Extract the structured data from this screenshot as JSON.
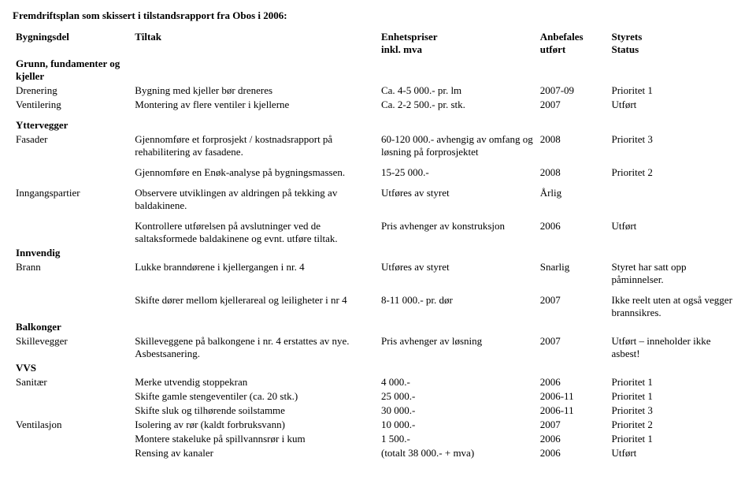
{
  "title": "Fremdriftsplan som skissert i tilstandsrapport fra Obos i 2006:",
  "headers": {
    "c1": "Bygningsdel",
    "c2": "Tiltak",
    "c3a": "Enhetspriser",
    "c3b": "inkl. mva",
    "c4a": "Anbefales",
    "c4b": "utført",
    "c5a": "Styrets",
    "c5b": "Status"
  },
  "sections": {
    "grunn": {
      "heading": "Grunn, fundamenter og kjeller",
      "rows": [
        {
          "label": "Drenering",
          "tiltak": "Bygning med kjeller bør dreneres",
          "pris": "Ca. 4-5 000.- pr. lm",
          "anbefales": "2007-09",
          "status": "Prioritet 1"
        },
        {
          "label": "Ventilering",
          "tiltak": "Montering av flere ventiler i kjellerne",
          "pris": "Ca. 2-2 500.- pr. stk.",
          "anbefales": "2007",
          "status": "Utført"
        }
      ]
    },
    "yttervegger": {
      "heading": "Yttervegger",
      "rows": [
        {
          "label": "Fasader",
          "tiltak": "Gjennomføre et forprosjekt / kostnadsrapport på rehabilitering av fasadene.",
          "pris": "60-120 000.- avhengig av omfang og løsning på forprosjektet",
          "anbefales": "2008",
          "status": "Prioritet 3"
        },
        {
          "label": "",
          "tiltak": "Gjennomføre en Enøk-analyse på bygningsmassen.",
          "pris": "15-25 000.-",
          "anbefales": "2008",
          "status": "Prioritet 2"
        },
        {
          "label": "Inngangspartier",
          "tiltak": "Observere utviklingen av aldringen på tekking av baldakinene.",
          "pris": "Utføres av styret",
          "anbefales": "Årlig",
          "status": ""
        },
        {
          "label": "",
          "tiltak": "Kontrollere utførelsen på avslutninger ved de saltaksformede baldakinene og evnt. utføre tiltak.",
          "pris": "Pris avhenger av konstruksjon",
          "anbefales": "2006",
          "status": "Utført"
        }
      ]
    },
    "innvendig": {
      "heading": "Innvendig",
      "rows": [
        {
          "label": "Brann",
          "tiltak": "Lukke branndørene i kjellergangen i nr. 4",
          "pris": "Utføres av styret",
          "anbefales": "Snarlig",
          "status": "Styret har satt opp påminnelser."
        },
        {
          "label": "",
          "tiltak": "Skifte dører mellom kjellerareal og leiligheter i nr 4",
          "pris": "8-11 000.- pr. dør",
          "anbefales": "2007",
          "status": "Ikke reelt uten at også vegger brannsikres."
        }
      ]
    },
    "balkonger": {
      "heading": "Balkonger",
      "rows": [
        {
          "label": "Skillevegger",
          "tiltak": "Skilleveggene på balkongene i nr. 4 erstattes av nye. Asbestsanering.",
          "pris": "Pris avhenger av løsning",
          "anbefales": "2007",
          "status": "Utført – inneholder ikke asbest!"
        }
      ]
    },
    "vvs": {
      "heading": "VVS",
      "rows": [
        {
          "label": "Sanitær",
          "tiltak": "Merke utvendig stoppekran",
          "pris": " 4 000.-",
          "anbefales": "2006",
          "status": "Prioritet 1"
        },
        {
          "label": "",
          "tiltak": "Skifte gamle stengeventiler (ca. 20 stk.)",
          "pris": "25 000.-",
          "anbefales": "2006-11",
          "status": "Prioritet 1"
        },
        {
          "label": "",
          "tiltak": "Skifte sluk og tilhørende soilstamme",
          "pris": "30 000.-",
          "anbefales": "2006-11",
          "status": "Prioritet 3"
        },
        {
          "label": "Ventilasjon",
          "tiltak": "Isolering av rør (kaldt forbruksvann)",
          "pris": "10 000.-",
          "anbefales": "2007",
          "status": "Prioritet 2"
        },
        {
          "label": "",
          "tiltak": "Montere stakeluke på spillvannsrør i kum",
          "pris": " 1 500.-",
          "anbefales": "2006",
          "status": "Prioritet 1"
        },
        {
          "label": "",
          "tiltak": "Rensing av kanaler",
          "pris": " (totalt 38 000.- + mva)",
          "anbefales": "2006",
          "status": "Utført"
        }
      ]
    }
  }
}
